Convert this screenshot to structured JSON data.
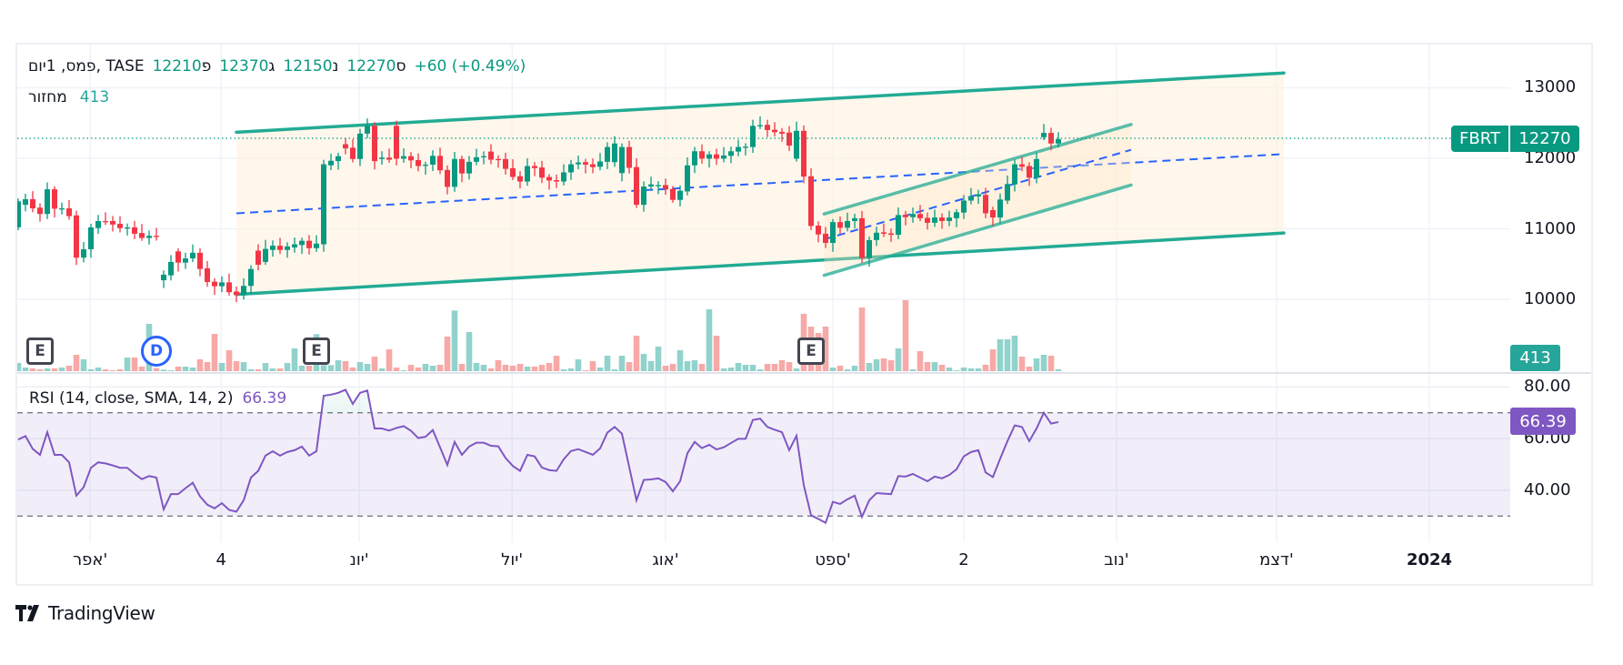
{
  "header": {
    "title": "פמס, 1יום, TASE",
    "ohlc": [
      {
        "label": "פ",
        "value": "12210"
      },
      {
        "label": "ג",
        "value": "12370"
      },
      {
        "label": "נ",
        "value": "12150"
      },
      {
        "label": "ס",
        "value": "12270"
      }
    ],
    "change": "+60 (+0.49%)",
    "volume_label": "מחזור",
    "volume_value": "413"
  },
  "price_axis": {
    "labels": [
      "13000",
      "12000",
      "11000",
      "10000"
    ],
    "values": [
      13000,
      12000,
      11000,
      10000
    ]
  },
  "price_tag": {
    "symbol": "FBRT",
    "value": "12270",
    "price": 12270
  },
  "volume_tag": "413",
  "rsi": {
    "legend": "RSI (14, close, SMA, 14, 2)",
    "value": "66.39",
    "axis_labels": [
      "80.00",
      "60.00",
      "40.00"
    ],
    "axis_values": [
      80,
      60,
      40
    ],
    "upper_band": 70,
    "lower_band": 30,
    "series": [
      59.6,
      61,
      56,
      53.7,
      62.5,
      53.7,
      53.7,
      50.8,
      37.9,
      41.2,
      48.7,
      50.8,
      50.4,
      49.6,
      48.7,
      48.7,
      46.3,
      44.3,
      45.5,
      44.9,
      32.6,
      38.5,
      38.5,
      40.8,
      42.9,
      37.6,
      34.4,
      33,
      35,
      32.4,
      31.7,
      36.1,
      44.9,
      47.5,
      53.4,
      55.1,
      53.4,
      54.8,
      55.5,
      56.9,
      53.4,
      55.1,
      76.6,
      77,
      77.7,
      78.9,
      73.4,
      77.7,
      78.6,
      63.9,
      63.9,
      63.1,
      64.1,
      64.8,
      63,
      60.2,
      60.7,
      63.3,
      56.6,
      49.8,
      58.7,
      53.7,
      56.9,
      58.4,
      58.4,
      57.2,
      57,
      52.5,
      49.4,
      47.5,
      53.7,
      53.1,
      48.8,
      47.8,
      47.5,
      52,
      55.2,
      55.9,
      54.8,
      53.7,
      56.2,
      62.3,
      64.5,
      61.9,
      49,
      36.1,
      44,
      44.2,
      44.6,
      43.2,
      39.6,
      43.5,
      54.3,
      58.7,
      56.3,
      57.6,
      55.8,
      56.6,
      58.3,
      59.9,
      59.9,
      67.2,
      67.7,
      64.5,
      63.4,
      62.5,
      55.5,
      61.1,
      42,
      30.3,
      28.9,
      27.4,
      35.5,
      34.7,
      36.5,
      37.9,
      29.7,
      36.1,
      38.9,
      38.7,
      38.5,
      45.5,
      45.3,
      46.3,
      44.9,
      43.5,
      45.3,
      44.6,
      45.9,
      48.1,
      53.1,
      54.8,
      55.5,
      46.9,
      45.1,
      52.2,
      59,
      65.1,
      64.5,
      59,
      63.9,
      70,
      65.8,
      66.39
    ]
  },
  "time_axis": [
    {
      "label": "אפר'",
      "bar": 9.9
    },
    {
      "label": "4",
      "bar": 27.9
    },
    {
      "label": "יונ'",
      "bar": 46.9
    },
    {
      "label": "יול'",
      "bar": 67.9
    },
    {
      "label": "אוג'",
      "bar": 89
    },
    {
      "label": "ספט'",
      "bar": 112
    },
    {
      "label": "2",
      "bar": 130
    },
    {
      "label": "נוב'",
      "bar": 151
    },
    {
      "label": "דצמ'",
      "bar": 173
    },
    {
      "label": "2024",
      "bar": 194
    }
  ],
  "events": [
    {
      "type": "E",
      "bar": 3
    },
    {
      "type": "D",
      "bar": 19
    },
    {
      "type": "E",
      "bar": 41
    },
    {
      "type": "E",
      "bar": 109
    }
  ],
  "colors": {
    "up": "#089981",
    "down": "#f23645",
    "vol_up": "#92d2cc",
    "vol_down": "#f7a9a7",
    "channel": "#22ab94",
    "midline": "#2962ff",
    "rsi": "#7e57c2"
  },
  "drawings": {
    "main_channel": {
      "start_bar": 30,
      "end_bar": 174,
      "upper": [
        12370,
        13210
      ],
      "lower": [
        10070,
        10940
      ],
      "mid": [
        11220,
        12060
      ]
    },
    "small_channel": {
      "start_bar": 110.8,
      "end_bar": 153,
      "upper": [
        11210,
        12480
      ],
      "lower": [
        10340,
        11620
      ],
      "mid": [
        10850,
        12120
      ]
    }
  },
  "chart_data": {
    "type": "candlestick",
    "ylim": [
      9000,
      13500
    ],
    "last": {
      "open": 12210,
      "high": 12370,
      "low": 12150,
      "close": 12270,
      "volume": 413
    },
    "candles": [
      [
        11020,
        11390
      ],
      [
        11340,
        11420
      ],
      [
        11420,
        11290
      ],
      [
        11300,
        11210
      ],
      [
        11210,
        11560
      ],
      [
        11560,
        11285
      ],
      [
        11290,
        11290
      ],
      [
        11290,
        11180
      ],
      [
        11190,
        10590
      ],
      [
        10590,
        10710
      ],
      [
        10710,
        11020
      ],
      [
        11010,
        11110
      ],
      [
        11110,
        11100
      ],
      [
        11110,
        11060
      ],
      [
        11070,
        11010
      ],
      [
        11020,
        11020
      ],
      [
        11020,
        10930
      ],
      [
        10940,
        10870
      ],
      [
        10870,
        10900
      ],
      [
        10900,
        10890
      ],
      [
        10270,
        10350
      ],
      [
        10340,
        10530
      ],
      [
        10680,
        10520
      ],
      [
        10520,
        10580
      ],
      [
        10580,
        10660
      ],
      [
        10660,
        10430
      ],
      [
        10440,
        10245
      ],
      [
        10250,
        10185
      ],
      [
        10185,
        10240
      ],
      [
        10240,
        10100
      ],
      [
        10110,
        10060
      ],
      [
        10060,
        10190
      ],
      [
        10190,
        10430
      ],
      [
        10690,
        10490
      ],
      [
        10530,
        10715
      ],
      [
        10700,
        10760
      ],
      [
        10760,
        10700
      ],
      [
        10700,
        10750
      ],
      [
        10735,
        10780
      ],
      [
        10770,
        10830
      ],
      [
        10830,
        10725
      ],
      [
        10725,
        10790
      ],
      [
        10780,
        11915
      ],
      [
        11900,
        11965
      ],
      [
        11960,
        12030
      ],
      [
        12200,
        12140
      ],
      [
        12150,
        11990
      ],
      [
        11990,
        12350
      ],
      [
        12350,
        12460
      ],
      [
        12460,
        11960
      ],
      [
        11990,
        12010
      ],
      [
        12010,
        11980
      ],
      [
        12460,
        11995
      ],
      [
        11995,
        12030
      ],
      [
        12030,
        11970
      ],
      [
        11975,
        11890
      ],
      [
        11895,
        11910
      ],
      [
        11910,
        12035
      ],
      [
        12035,
        11830
      ],
      [
        11835,
        11595
      ],
      [
        11595,
        11990
      ],
      [
        11990,
        11785
      ],
      [
        11785,
        11950
      ],
      [
        11950,
        12015
      ],
      [
        12015,
        12030
      ],
      [
        12095,
        11980
      ],
      [
        11990,
        11985
      ],
      [
        11990,
        11850
      ],
      [
        11860,
        11735
      ],
      [
        11745,
        11670
      ],
      [
        11670,
        11890
      ],
      [
        11890,
        11860
      ],
      [
        11870,
        11725
      ],
      [
        11735,
        11685
      ],
      [
        11690,
        11670
      ],
      [
        11670,
        11800
      ],
      [
        11800,
        11915
      ],
      [
        11915,
        11940
      ],
      [
        11945,
        11910
      ],
      [
        11915,
        11875
      ],
      [
        11880,
        11955
      ],
      [
        11950,
        12160
      ],
      [
        11945,
        12210
      ],
      [
        11790,
        12160
      ],
      [
        12160,
        11865
      ],
      [
        11875,
        11340
      ],
      [
        11340,
        11600
      ],
      [
        11600,
        11630
      ],
      [
        11605,
        11620
      ],
      [
        11620,
        11560
      ],
      [
        11565,
        11410
      ],
      [
        11410,
        11540
      ],
      [
        11530,
        11900
      ],
      [
        11900,
        12100
      ],
      [
        12100,
        11995
      ],
      [
        11995,
        12055
      ],
      [
        12055,
        11995
      ],
      [
        11995,
        12040
      ],
      [
        12035,
        12100
      ],
      [
        12095,
        12160
      ],
      [
        12160,
        12165
      ],
      [
        12160,
        12460
      ],
      [
        12460,
        12470
      ],
      [
        12475,
        12400
      ],
      [
        12405,
        12370
      ],
      [
        12375,
        12350
      ],
      [
        12365,
        12180
      ],
      [
        11995,
        12390
      ],
      [
        12390,
        11740
      ],
      [
        11745,
        11040
      ],
      [
        11045,
        10920
      ],
      [
        10930,
        10800
      ],
      [
        10800,
        11095
      ],
      [
        11095,
        11015
      ],
      [
        11015,
        11110
      ],
      [
        11110,
        11150
      ],
      [
        11150,
        10585
      ],
      [
        10585,
        10840
      ],
      [
        10840,
        10945
      ],
      [
        10950,
        10930
      ],
      [
        10935,
        10915
      ],
      [
        10915,
        11195
      ],
      [
        11200,
        11165
      ],
      [
        11165,
        11210
      ],
      [
        11210,
        11150
      ],
      [
        11155,
        11085
      ],
      [
        11085,
        11160
      ],
      [
        11160,
        11110
      ],
      [
        11110,
        11160
      ],
      [
        11150,
        11235
      ],
      [
        11230,
        11400
      ],
      [
        11400,
        11460
      ],
      [
        11460,
        11490
      ],
      [
        11480,
        11220
      ],
      [
        11265,
        11160
      ],
      [
        11160,
        11415
      ],
      [
        11400,
        11635
      ],
      [
        11630,
        11915
      ],
      [
        11915,
        11880
      ],
      [
        11890,
        11725
      ],
      [
        11725,
        11990
      ],
      [
        12300,
        12360
      ],
      [
        12360,
        12210
      ],
      [
        12210,
        12270
      ]
    ],
    "volumes": [
      1863,
      828,
      621,
      414,
      621,
      621,
      828,
      1242,
      3726,
      2691,
      414,
      828,
      414,
      207,
      414,
      3105,
      3105,
      1035,
      10764,
      690,
      345,
      207,
      1035,
      1035,
      828,
      2691,
      2070,
      8487,
      1863,
      4761,
      2277,
      2070,
      414,
      414,
      1863,
      621,
      621,
      1863,
      5175,
      1242,
      1242,
      8418,
      1380,
      1380,
      2484,
      2277,
      828,
      2070,
      1656,
      3312,
      621,
      4968,
      828,
      207,
      1449,
      828,
      1656,
      1242,
      1449,
      7866,
      13800,
      1656,
      8901,
      1863,
      1449,
      621,
      2484,
      1449,
      1242,
      1656,
      1035,
      1035,
      1449,
      1863,
      3519,
      414,
      621,
      2691,
      207,
      2277,
      828,
      3519,
      414,
      3519,
      2070,
      8073,
      3933,
      2277,
      5589,
      1242,
      1656,
      4761,
      2277,
      2484,
      1656,
      14076,
      8073,
      621,
      828,
      1863,
      1449,
      1449,
      414,
      1656,
      1656,
      2484,
      2070,
      621,
      13041,
      10143,
      8694,
      10143,
      828,
      1242,
      414,
      1242,
      14490,
      1863,
      2691,
      2898,
      2484,
      5175,
      16146,
      414,
      4554,
      2070,
      2070,
      1449,
      828,
      207,
      828,
      621,
      621,
      1449,
      4968,
      7245,
      7245,
      8073,
      3312,
      1035,
      2898,
      3726,
      3519,
      413
    ]
  },
  "footer": {
    "brand": "TradingView"
  }
}
